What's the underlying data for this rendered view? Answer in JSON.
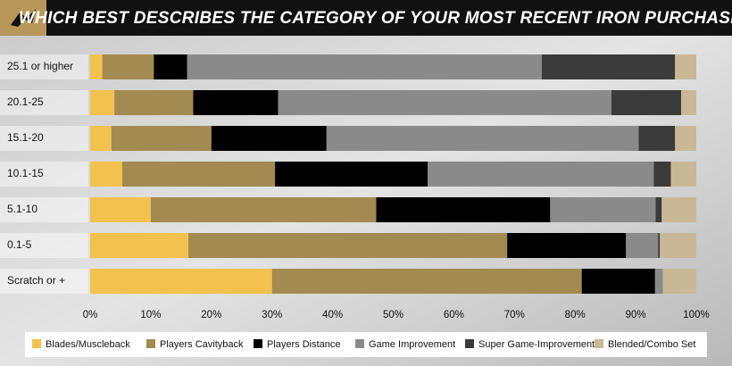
{
  "chart_data": {
    "type": "stacked-horizontal-bar",
    "title": "WHICH BEST DESCRIBES THE CATEGORY OF YOUR MOST RECENT IRON PURCHASE?",
    "categories": [
      "25.1 or higher",
      "20.1-25",
      "15.1-20",
      "10.1-15",
      "5.1-10",
      "0.1-5",
      "Scratch or +"
    ],
    "series": [
      {
        "name": "Blades/Muscleback",
        "color": "#f2c14e",
        "values": [
          2,
          4,
          3.5,
          5.3,
          10,
          16.2,
          30
        ]
      },
      {
        "name": "Players Cavityback",
        "color": "#a38a50",
        "values": [
          8.5,
          13,
          16.5,
          25.2,
          37.2,
          52.6,
          51.1
        ]
      },
      {
        "name": "Players Distance",
        "color": "#000000",
        "values": [
          5.5,
          14,
          19,
          25.2,
          28.7,
          19.6,
          12.1
        ]
      },
      {
        "name": "Game Improvement",
        "color": "#8a8a8a",
        "values": [
          58.5,
          55,
          51.5,
          37.3,
          17.4,
          5.3,
          1.3
        ]
      },
      {
        "name": "Super Game-Improvement",
        "color": "#3b3b3b",
        "values": [
          22,
          11.5,
          6,
          2.8,
          1,
          0.3,
          0
        ]
      },
      {
        "name": "Blended/Combo Set",
        "color": "#c9b896",
        "values": [
          3.5,
          2.5,
          3.5,
          4.2,
          5.7,
          6,
          5.5
        ]
      }
    ],
    "xlim": [
      0,
      100
    ],
    "xticks": [
      {
        "value": 0,
        "label": "0%"
      },
      {
        "value": 10,
        "label": "10%"
      },
      {
        "value": 20,
        "label": "20%"
      },
      {
        "value": 30,
        "label": "30%"
      },
      {
        "value": 40,
        "label": "40%"
      },
      {
        "value": 50,
        "label": "50%"
      },
      {
        "value": 60,
        "label": "60%"
      },
      {
        "value": 70,
        "label": "70%"
      },
      {
        "value": 80,
        "label": "80%"
      },
      {
        "value": 90,
        "label": "90%"
      },
      {
        "value": 100,
        "label": "100%"
      }
    ]
  }
}
